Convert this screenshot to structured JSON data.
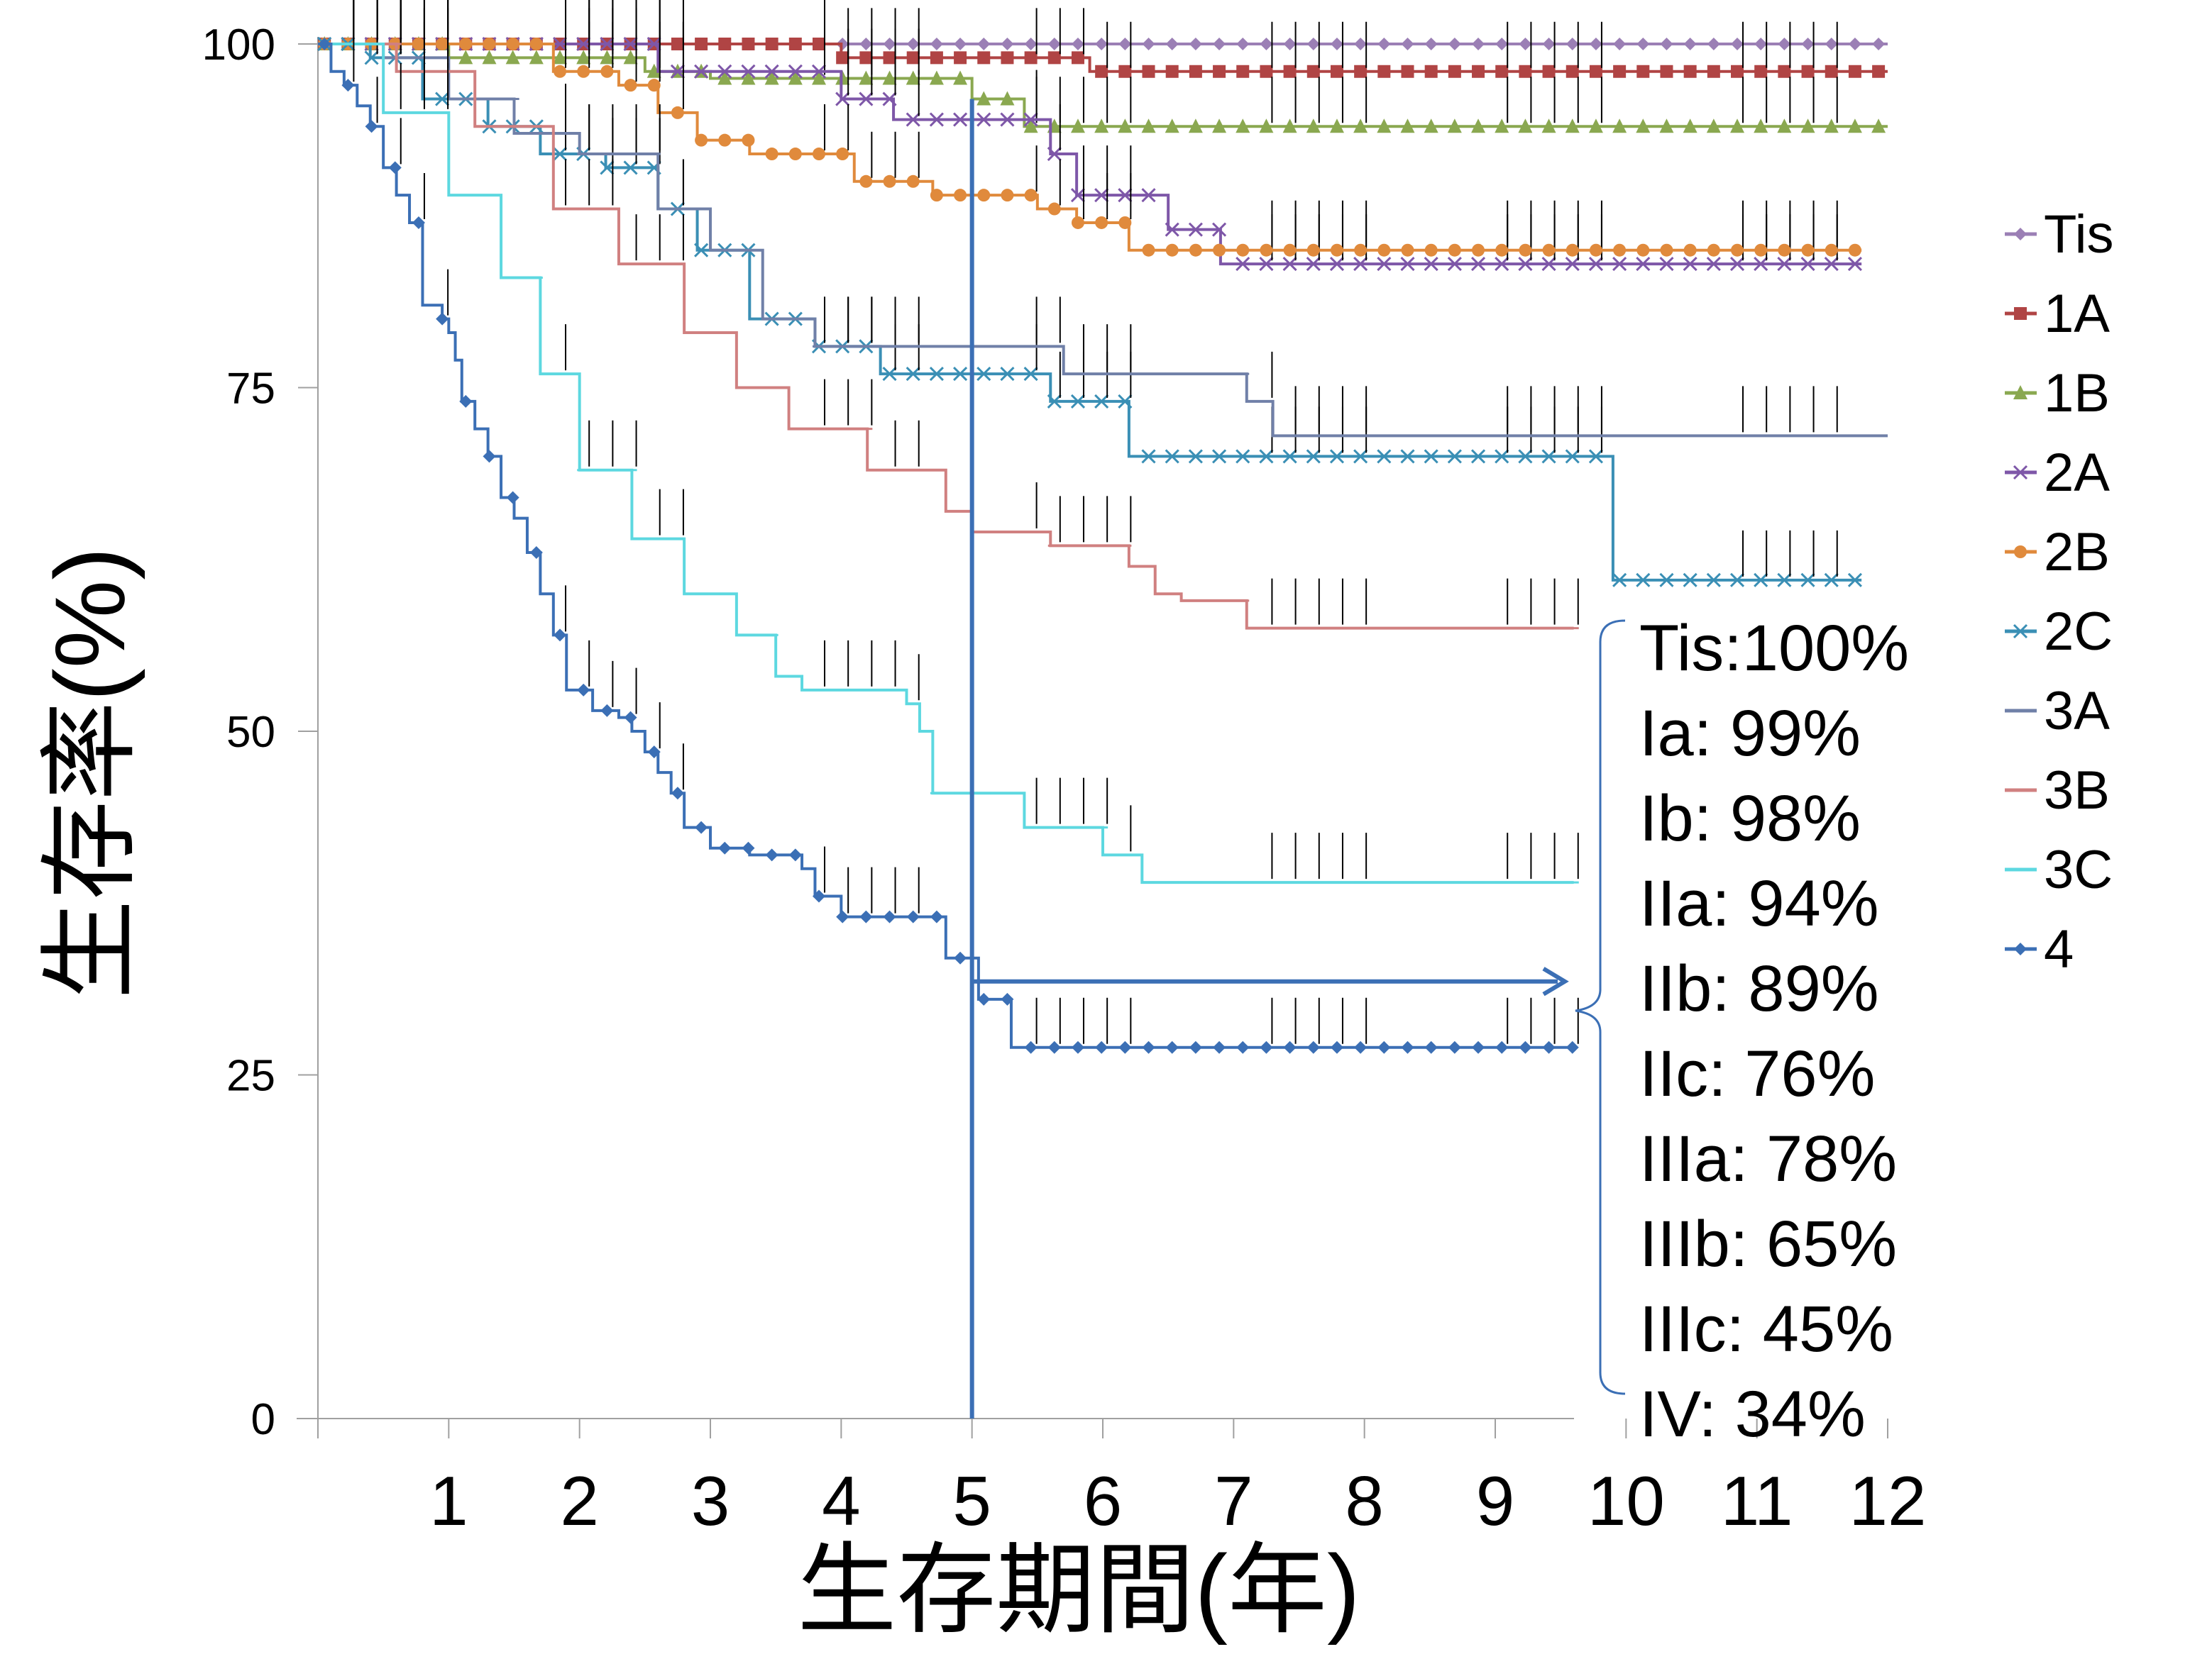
{
  "chart_data": {
    "type": "line",
    "ylabel": "生存率(%)",
    "xlabel": "生存期間(年)",
    "xlim": [
      0,
      12
    ],
    "ylim": [
      0,
      100
    ],
    "x_ticks": [
      "1",
      "2",
      "3",
      "4",
      "5",
      "6",
      "7",
      "8",
      "9",
      "10",
      "11",
      "12"
    ],
    "y_ticks": [
      "0",
      "25",
      "50",
      "75",
      "100"
    ],
    "legend_position": "right",
    "marker_line_x": 5,
    "series": [
      {
        "name": "Tis",
        "color": "#9b7fb5",
        "marker": "diamond",
        "points": [
          [
            0,
            100
          ],
          [
            12,
            100
          ]
        ]
      },
      {
        "name": "1A",
        "color": "#b04444",
        "marker": "square",
        "points": [
          [
            0,
            100
          ],
          [
            4,
            100
          ],
          [
            4,
            99
          ],
          [
            5.9,
            99
          ],
          [
            5.9,
            98
          ],
          [
            12,
            98
          ]
        ]
      },
      {
        "name": "1B",
        "color": "#8aa850",
        "marker": "triangle",
        "points": [
          [
            0,
            100
          ],
          [
            1,
            100
          ],
          [
            1,
            99
          ],
          [
            2.5,
            99
          ],
          [
            2.5,
            98
          ],
          [
            3,
            98
          ],
          [
            3,
            97.5
          ],
          [
            5,
            97.5
          ],
          [
            5,
            96
          ],
          [
            5.4,
            96
          ],
          [
            5.4,
            94
          ],
          [
            12,
            94
          ]
        ]
      },
      {
        "name": "2A",
        "color": "#7e57a8",
        "marker": "x",
        "points": [
          [
            0,
            100
          ],
          [
            2.6,
            100
          ],
          [
            2.6,
            98
          ],
          [
            4,
            98
          ],
          [
            4,
            96
          ],
          [
            4.4,
            96
          ],
          [
            4.4,
            94.5
          ],
          [
            5.6,
            94.5
          ],
          [
            5.6,
            92
          ],
          [
            5.8,
            92
          ],
          [
            5.8,
            89
          ],
          [
            6.5,
            89
          ],
          [
            6.5,
            86.5
          ],
          [
            6.9,
            86.5
          ],
          [
            6.9,
            84
          ],
          [
            11.8,
            84
          ]
        ]
      },
      {
        "name": "2B",
        "color": "#e08a3c",
        "marker": "dot",
        "points": [
          [
            0,
            100
          ],
          [
            1.8,
            100
          ],
          [
            1.8,
            98
          ],
          [
            2.3,
            98
          ],
          [
            2.3,
            97
          ],
          [
            2.6,
            97
          ],
          [
            2.6,
            95
          ],
          [
            2.9,
            95
          ],
          [
            2.9,
            93
          ],
          [
            3.3,
            93
          ],
          [
            3.3,
            92
          ],
          [
            4.1,
            92
          ],
          [
            4.1,
            90
          ],
          [
            4.7,
            90
          ],
          [
            4.7,
            89
          ],
          [
            5.5,
            89
          ],
          [
            5.5,
            88
          ],
          [
            5.8,
            88
          ],
          [
            5.8,
            87
          ],
          [
            6.2,
            87
          ],
          [
            6.2,
            85
          ],
          [
            11.8,
            85
          ]
        ]
      },
      {
        "name": "2C",
        "color": "#3a8fb5",
        "marker": "x",
        "points": [
          [
            0,
            100
          ],
          [
            0.4,
            99
          ],
          [
            0.8,
            96
          ],
          [
            1.3,
            94
          ],
          [
            1.7,
            92
          ],
          [
            2.2,
            91
          ],
          [
            2.6,
            88
          ],
          [
            2.9,
            85
          ],
          [
            3.3,
            80
          ],
          [
            3.8,
            78
          ],
          [
            4.3,
            76
          ],
          [
            5.6,
            76
          ],
          [
            5.6,
            74
          ],
          [
            6.2,
            74
          ],
          [
            6.2,
            70
          ],
          [
            9.9,
            70
          ],
          [
            9.9,
            61
          ],
          [
            11.8,
            61
          ]
        ]
      },
      {
        "name": "3A",
        "color": "#7080a8",
        "marker": "dash",
        "points": [
          [
            0,
            100
          ],
          [
            0.5,
            99
          ],
          [
            1,
            96
          ],
          [
            1.5,
            93.5
          ],
          [
            2,
            92
          ],
          [
            2.6,
            88
          ],
          [
            3.0,
            85
          ],
          [
            3.4,
            80
          ],
          [
            3.8,
            78
          ],
          [
            5.7,
            78
          ],
          [
            5.7,
            76
          ],
          [
            7.1,
            76
          ],
          [
            7.1,
            74
          ],
          [
            7.3,
            74
          ],
          [
            7.3,
            71.5
          ],
          [
            12,
            71.5
          ]
        ]
      },
      {
        "name": "3B",
        "color": "#d08080",
        "marker": "dash",
        "points": [
          [
            0,
            100
          ],
          [
            0.6,
            98
          ],
          [
            1.2,
            94
          ],
          [
            1.8,
            88
          ],
          [
            2.3,
            84
          ],
          [
            2.8,
            79
          ],
          [
            3.2,
            75
          ],
          [
            3.6,
            72
          ],
          [
            4.2,
            69
          ],
          [
            4.8,
            66
          ],
          [
            5.0,
            64.5
          ],
          [
            5.6,
            63.5
          ],
          [
            6.2,
            62
          ],
          [
            6.4,
            60
          ],
          [
            6.6,
            59.5
          ],
          [
            7.1,
            59.5
          ],
          [
            7.1,
            57.5
          ],
          [
            9.6,
            57.5
          ]
        ]
      },
      {
        "name": "3C",
        "color": "#5dd8e0",
        "marker": "dash",
        "points": [
          [
            0,
            100
          ],
          [
            0.5,
            95
          ],
          [
            1.0,
            89
          ],
          [
            1.4,
            83
          ],
          [
            1.7,
            76
          ],
          [
            2.0,
            69
          ],
          [
            2.4,
            64
          ],
          [
            2.8,
            60
          ],
          [
            3.2,
            57
          ],
          [
            3.5,
            54
          ],
          [
            3.7,
            53
          ],
          [
            4.3,
            53
          ],
          [
            4.5,
            52
          ],
          [
            4.6,
            50
          ],
          [
            4.7,
            45.5
          ],
          [
            5.4,
            45.5
          ],
          [
            5.4,
            43
          ],
          [
            6.0,
            43
          ],
          [
            6.0,
            41
          ],
          [
            6.3,
            41
          ],
          [
            6.3,
            39
          ],
          [
            9.6,
            39
          ]
        ]
      },
      {
        "name": "4",
        "color": "#3b6fb5",
        "marker": "diamond",
        "points": [
          [
            0,
            100
          ],
          [
            0.1,
            98
          ],
          [
            0.2,
            97
          ],
          [
            0.3,
            95.5
          ],
          [
            0.4,
            94
          ],
          [
            0.5,
            91
          ],
          [
            0.6,
            89
          ],
          [
            0.7,
            87
          ],
          [
            0.8,
            81
          ],
          [
            0.95,
            80
          ],
          [
            1.0,
            79
          ],
          [
            1.05,
            77
          ],
          [
            1.1,
            74
          ],
          [
            1.2,
            72
          ],
          [
            1.3,
            70
          ],
          [
            1.4,
            67
          ],
          [
            1.5,
            65.5
          ],
          [
            1.6,
            63
          ],
          [
            1.7,
            60
          ],
          [
            1.8,
            57
          ],
          [
            1.9,
            53
          ],
          [
            2.1,
            51.5
          ],
          [
            2.3,
            51
          ],
          [
            2.4,
            50
          ],
          [
            2.5,
            48.5
          ],
          [
            2.6,
            47
          ],
          [
            2.7,
            45.5
          ],
          [
            2.8,
            43
          ],
          [
            3.0,
            41.5
          ],
          [
            3.3,
            41
          ],
          [
            3.7,
            40
          ],
          [
            3.8,
            38
          ],
          [
            4.0,
            36.5
          ],
          [
            4.8,
            36.5
          ],
          [
            4.8,
            33.5
          ],
          [
            5.05,
            33.5
          ],
          [
            5.05,
            30.5
          ],
          [
            5.3,
            30.5
          ],
          [
            5.3,
            27
          ],
          [
            9.6,
            27
          ]
        ]
      }
    ],
    "annotation": {
      "lines": [
        "Tis:100%",
        "Ia:   99%",
        "Ib:   98%",
        "IIa:  94%",
        "IIb:  89%",
        "IIc:  76%",
        "IIIa: 78%",
        "IIIb: 65%",
        "IIIc: 45%",
        "IV:   34%"
      ]
    }
  }
}
